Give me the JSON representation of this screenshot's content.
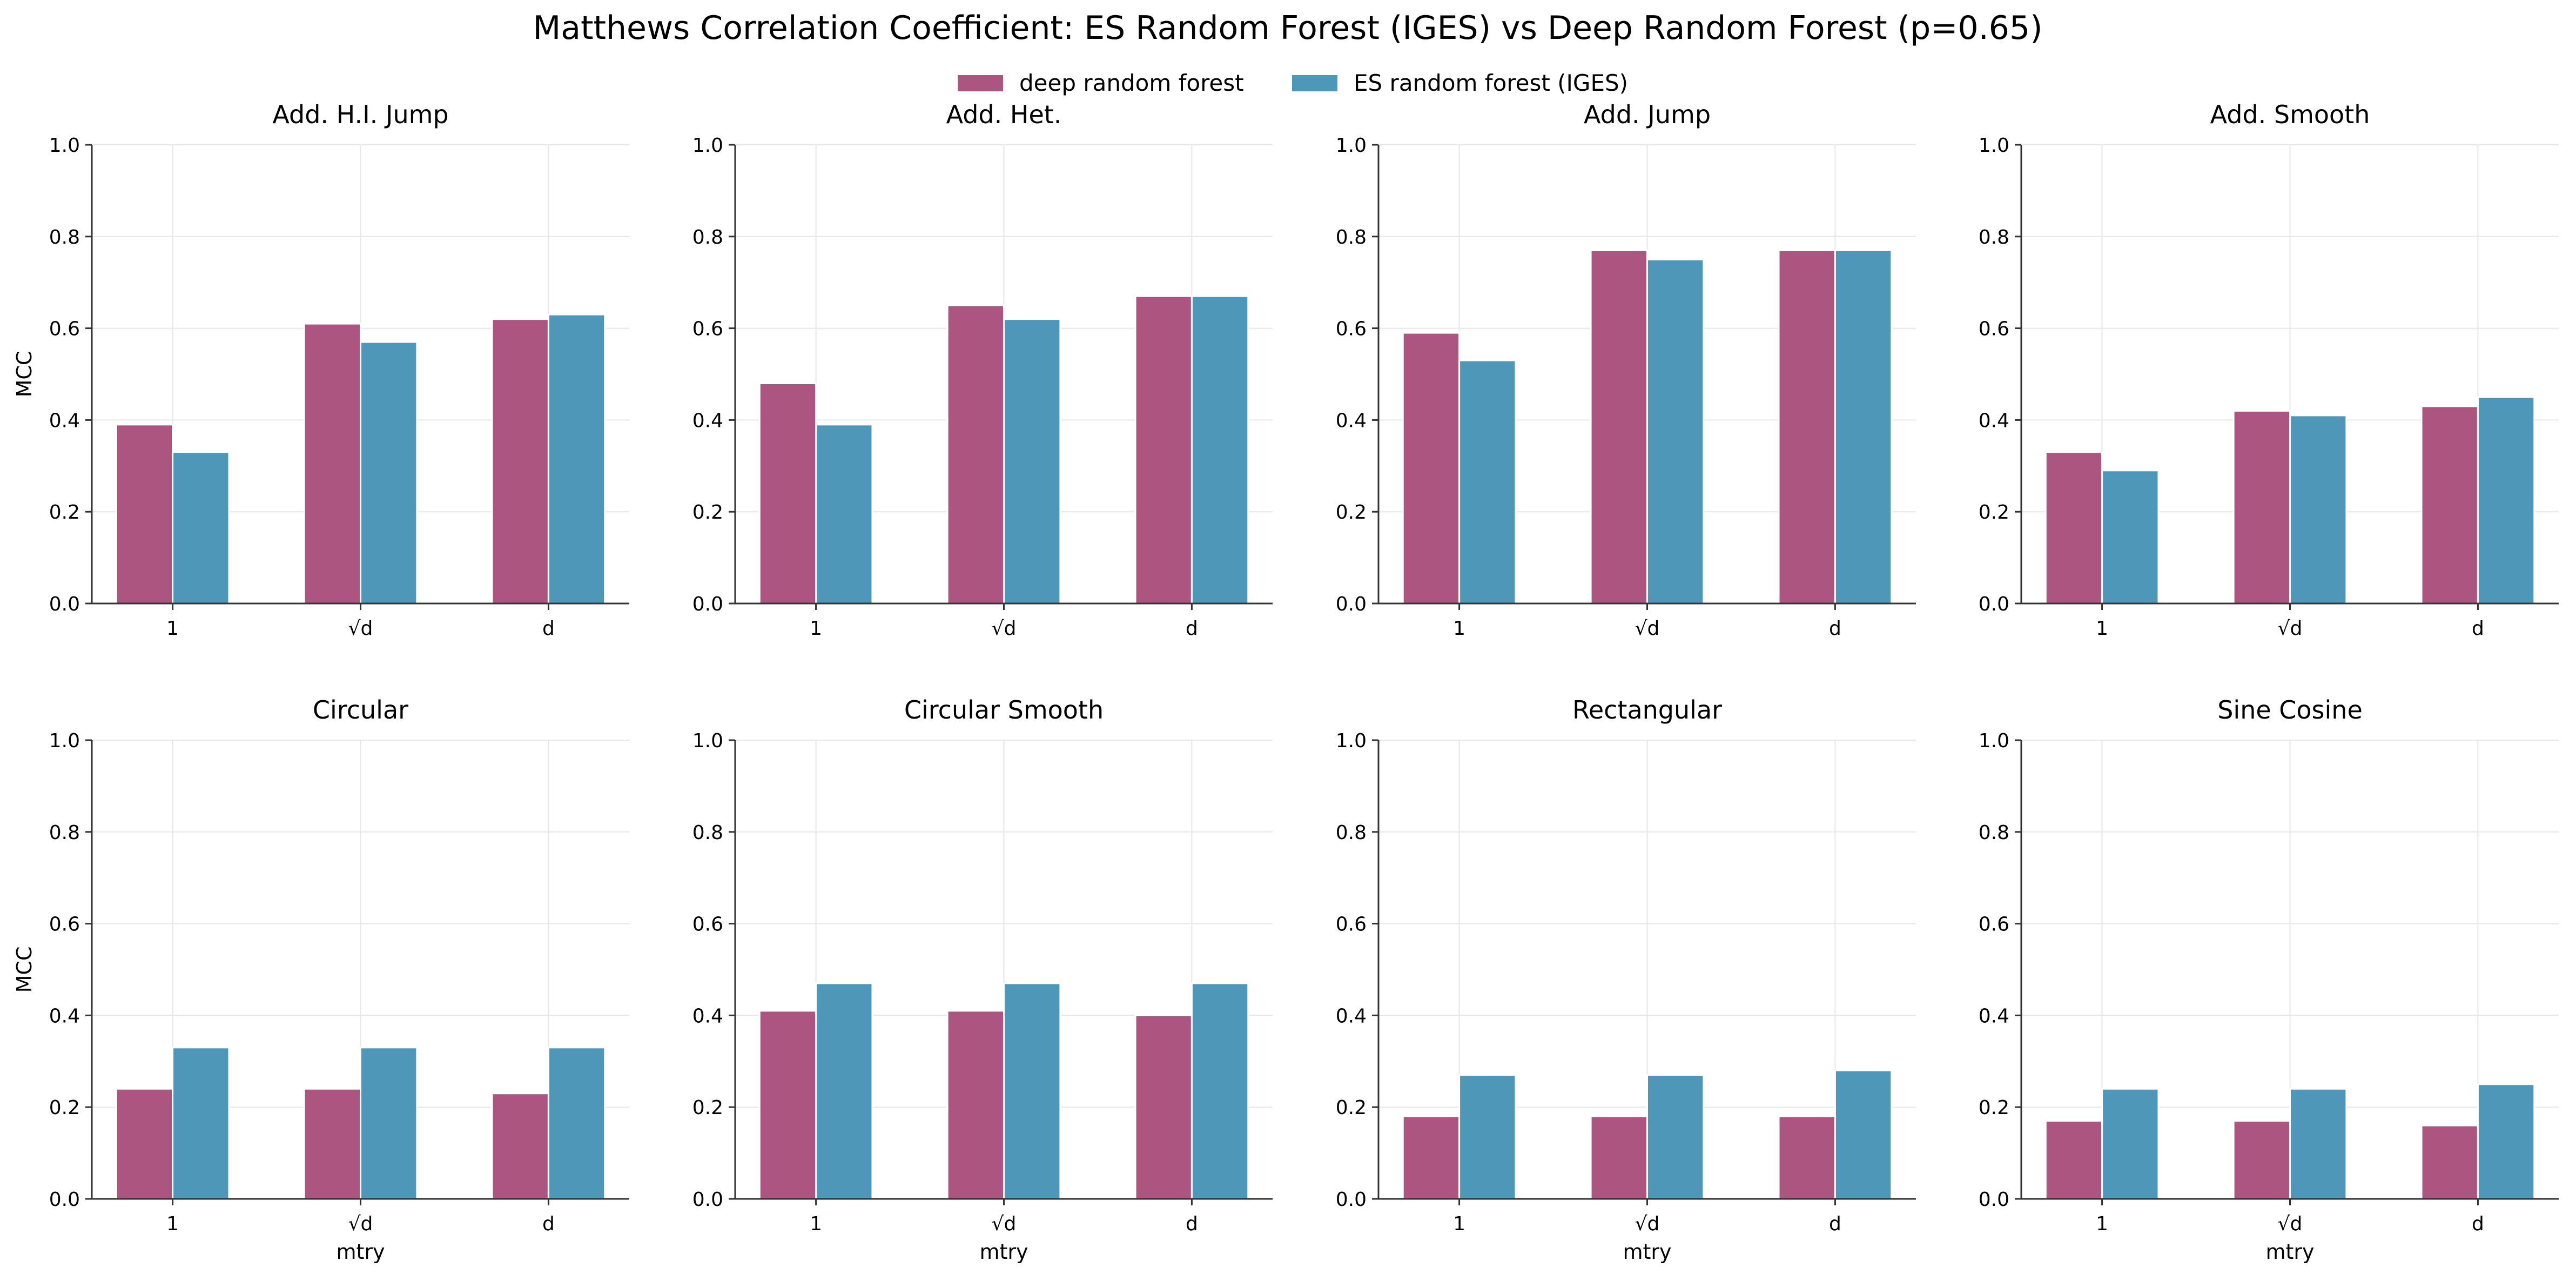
{
  "figure": {
    "title": "Matthews Correlation Coefficient: ES Random Forest (IGES) vs Deep Random Forest (p=0.65)"
  },
  "legend": {
    "placement": "top-center",
    "items": [
      {
        "label": "deep random forest",
        "color": "#ad5581"
      },
      {
        "label": "ES random forest (IGES)",
        "color": "#4e97b9"
      }
    ]
  },
  "chart_data": [
    {
      "type": "bar",
      "title": "Add. H.I. Jump",
      "xlabel": "",
      "ylabel": "MCC",
      "categories": [
        "1",
        "√d",
        "d"
      ],
      "ylim": [
        0,
        1.0
      ],
      "yticks": [
        "0.0",
        "0.2",
        "0.4",
        "0.6",
        "0.8",
        "1.0"
      ],
      "grid": true,
      "series": [
        {
          "name": "deep random forest",
          "values": [
            0.39,
            0.61,
            0.62
          ]
        },
        {
          "name": "ES random forest (IGES)",
          "values": [
            0.33,
            0.57,
            0.63
          ]
        }
      ]
    },
    {
      "type": "bar",
      "title": "Add. Het.",
      "xlabel": "",
      "ylabel": "",
      "categories": [
        "1",
        "√d",
        "d"
      ],
      "ylim": [
        0,
        1.0
      ],
      "yticks": [
        "0.0",
        "0.2",
        "0.4",
        "0.6",
        "0.8",
        "1.0"
      ],
      "grid": true,
      "series": [
        {
          "name": "deep random forest",
          "values": [
            0.48,
            0.65,
            0.67
          ]
        },
        {
          "name": "ES random forest (IGES)",
          "values": [
            0.39,
            0.62,
            0.67
          ]
        }
      ]
    },
    {
      "type": "bar",
      "title": "Add. Jump",
      "xlabel": "",
      "ylabel": "",
      "categories": [
        "1",
        "√d",
        "d"
      ],
      "ylim": [
        0,
        1.0
      ],
      "yticks": [
        "0.0",
        "0.2",
        "0.4",
        "0.6",
        "0.8",
        "1.0"
      ],
      "grid": true,
      "series": [
        {
          "name": "deep random forest",
          "values": [
            0.59,
            0.77,
            0.77
          ]
        },
        {
          "name": "ES random forest (IGES)",
          "values": [
            0.53,
            0.75,
            0.77
          ]
        }
      ]
    },
    {
      "type": "bar",
      "title": "Add. Smooth",
      "xlabel": "",
      "ylabel": "",
      "categories": [
        "1",
        "√d",
        "d"
      ],
      "ylim": [
        0,
        1.0
      ],
      "yticks": [
        "0.0",
        "0.2",
        "0.4",
        "0.6",
        "0.8",
        "1.0"
      ],
      "grid": true,
      "series": [
        {
          "name": "deep random forest",
          "values": [
            0.33,
            0.42,
            0.43
          ]
        },
        {
          "name": "ES random forest (IGES)",
          "values": [
            0.29,
            0.41,
            0.45
          ]
        }
      ]
    },
    {
      "type": "bar",
      "title": "Circular",
      "xlabel": "mtry",
      "ylabel": "MCC",
      "categories": [
        "1",
        "√d",
        "d"
      ],
      "ylim": [
        0,
        1.0
      ],
      "yticks": [
        "0.0",
        "0.2",
        "0.4",
        "0.6",
        "0.8",
        "1.0"
      ],
      "grid": true,
      "series": [
        {
          "name": "deep random forest",
          "values": [
            0.24,
            0.24,
            0.23
          ]
        },
        {
          "name": "ES random forest (IGES)",
          "values": [
            0.33,
            0.33,
            0.33
          ]
        }
      ]
    },
    {
      "type": "bar",
      "title": "Circular Smooth",
      "xlabel": "mtry",
      "ylabel": "",
      "categories": [
        "1",
        "√d",
        "d"
      ],
      "ylim": [
        0,
        1.0
      ],
      "yticks": [
        "0.0",
        "0.2",
        "0.4",
        "0.6",
        "0.8",
        "1.0"
      ],
      "grid": true,
      "series": [
        {
          "name": "deep random forest",
          "values": [
            0.41,
            0.41,
            0.4
          ]
        },
        {
          "name": "ES random forest (IGES)",
          "values": [
            0.47,
            0.47,
            0.47
          ]
        }
      ]
    },
    {
      "type": "bar",
      "title": "Rectangular",
      "xlabel": "mtry",
      "ylabel": "",
      "categories": [
        "1",
        "√d",
        "d"
      ],
      "ylim": [
        0,
        1.0
      ],
      "yticks": [
        "0.0",
        "0.2",
        "0.4",
        "0.6",
        "0.8",
        "1.0"
      ],
      "grid": true,
      "series": [
        {
          "name": "deep random forest",
          "values": [
            0.18,
            0.18,
            0.18
          ]
        },
        {
          "name": "ES random forest (IGES)",
          "values": [
            0.27,
            0.27,
            0.28
          ]
        }
      ]
    },
    {
      "type": "bar",
      "title": "Sine Cosine",
      "xlabel": "mtry",
      "ylabel": "",
      "categories": [
        "1",
        "√d",
        "d"
      ],
      "ylim": [
        0,
        1.0
      ],
      "yticks": [
        "0.0",
        "0.2",
        "0.4",
        "0.6",
        "0.8",
        "1.0"
      ],
      "grid": true,
      "series": [
        {
          "name": "deep random forest",
          "values": [
            0.17,
            0.17,
            0.16
          ]
        },
        {
          "name": "ES random forest (IGES)",
          "values": [
            0.24,
            0.24,
            0.25
          ]
        }
      ]
    }
  ]
}
